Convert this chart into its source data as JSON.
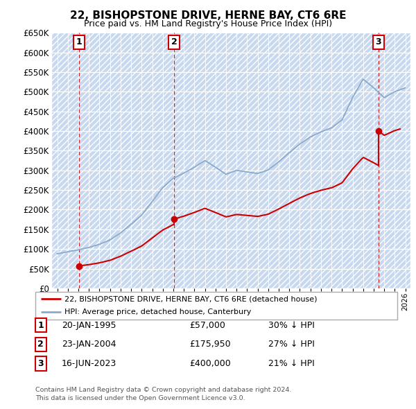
{
  "title": "22, BISHOPSTONE DRIVE, HERNE BAY, CT6 6RE",
  "subtitle": "Price paid vs. HM Land Registry's House Price Index (HPI)",
  "transactions": [
    {
      "num": 1,
      "date": 1995.07,
      "price": 57000,
      "label": "20-JAN-1995",
      "price_str": "£57,000",
      "pct": "30% ↓ HPI"
    },
    {
      "num": 2,
      "date": 2004.07,
      "price": 175950,
      "label": "23-JAN-2004",
      "price_str": "£175,950",
      "pct": "27% ↓ HPI"
    },
    {
      "num": 3,
      "date": 2023.46,
      "price": 400000,
      "label": "16-JUN-2023",
      "price_str": "£400,000",
      "pct": "21% ↓ HPI"
    }
  ],
  "legend_line1": "22, BISHOPSTONE DRIVE, HERNE BAY, CT6 6RE (detached house)",
  "legend_line2": "HPI: Average price, detached house, Canterbury",
  "footer1": "Contains HM Land Registry data © Crown copyright and database right 2024.",
  "footer2": "This data is licensed under the Open Government Licence v3.0.",
  "ylim": [
    0,
    650000
  ],
  "yticks": [
    0,
    50000,
    100000,
    150000,
    200000,
    250000,
    300000,
    350000,
    400000,
    450000,
    500000,
    550000,
    600000,
    650000
  ],
  "xlim": [
    1992.5,
    2026.5
  ],
  "bg_plot": "#dde8f8",
  "hatch_color": "#c8d8ee",
  "red_color": "#cc0000",
  "blue_color": "#88aacc",
  "marker_box_color": "#cc0000",
  "vline_color": "#cc0000",
  "grid_color": "#bbccdd",
  "white_grid": "#ffffff"
}
